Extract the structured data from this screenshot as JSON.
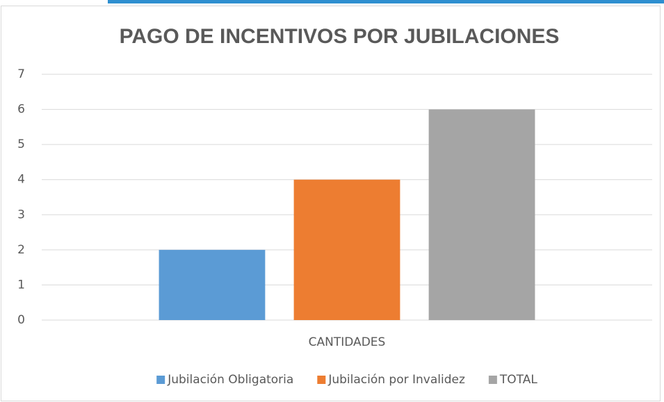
{
  "chart_data": {
    "type": "bar",
    "title": "PAGO DE INCENTIVOS POR JUBILACIONES",
    "categories": [
      "CANTIDADES"
    ],
    "series": [
      {
        "name": "Jubilación Obligatoria",
        "color": "#5b9bd5",
        "values": [
          2
        ]
      },
      {
        "name": "Jubilación por Invalidez",
        "color": "#ed7d31",
        "values": [
          4
        ]
      },
      {
        "name": "TOTAL",
        "color": "#a5a5a5",
        "values": [
          6
        ]
      }
    ],
    "ylim": [
      0,
      7
    ],
    "yticks": [
      0,
      1,
      2,
      3,
      4,
      5,
      6,
      7
    ],
    "grid": true,
    "legend": "bottom"
  }
}
